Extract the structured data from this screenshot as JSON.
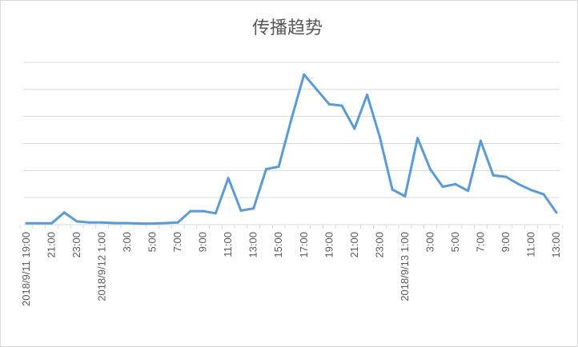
{
  "chart_data": {
    "type": "line",
    "title": "传播趋势",
    "xlabel": "",
    "ylabel": "",
    "y_tick_labels_shown": false,
    "ylim": [
      0,
      6
    ],
    "grid": "horizontal",
    "legend": "none",
    "colors": {
      "line": "#5b9bd5",
      "grid": "#d9d9d9",
      "text": "#595959",
      "border": "#d9d9d9"
    },
    "categories": [
      "2018/9/11 19:00",
      "20:00",
      "21:00",
      "22:00",
      "23:00",
      "0:00",
      "2018/9/12 1:00",
      "2:00",
      "3:00",
      "4:00",
      "5:00",
      "6:00",
      "7:00",
      "8:00",
      "9:00",
      "10:00",
      "11:00",
      "12:00",
      "13:00",
      "14:00",
      "15:00",
      "16:00",
      "17:00",
      "18:00",
      "19:00",
      "20:00",
      "21:00",
      "22:00",
      "23:00",
      "0:00",
      "2018/9/13 1:00",
      "2:00",
      "3:00",
      "4:00",
      "5:00",
      "6:00",
      "7:00",
      "8:00",
      "9:00",
      "10:00",
      "11:00",
      "12:00",
      "13:00"
    ],
    "x_tick_labels": [
      "2018/9/11 19:00",
      "21:00",
      "23:00",
      "2018/9/12 1:00",
      "3:00",
      "5:00",
      "7:00",
      "9:00",
      "11:00",
      "13:00",
      "15:00",
      "17:00",
      "19:00",
      "21:00",
      "23:00",
      "2018/9/13 1:00",
      "3:00",
      "5:00",
      "7:00",
      "9:00",
      "11:00",
      "13:00"
    ],
    "series": [
      {
        "values": [
          0.05,
          0.05,
          0.05,
          0.45,
          0.12,
          0.08,
          0.08,
          0.06,
          0.06,
          0.04,
          0.04,
          0.06,
          0.08,
          0.5,
          0.5,
          0.42,
          1.72,
          0.52,
          0.6,
          2.05,
          2.15,
          3.9,
          5.55,
          5.0,
          4.45,
          4.4,
          3.55,
          4.8,
          3.25,
          1.3,
          1.05,
          3.2,
          2.05,
          1.4,
          1.5,
          1.25,
          3.1,
          1.82,
          1.77,
          1.5,
          1.28,
          1.12,
          0.45
        ]
      }
    ]
  }
}
